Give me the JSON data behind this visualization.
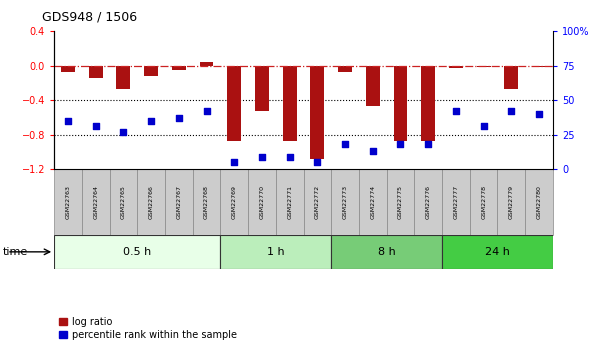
{
  "title": "GDS948 / 1506",
  "samples": [
    "GSM22763",
    "GSM22764",
    "GSM22765",
    "GSM22766",
    "GSM22767",
    "GSM22768",
    "GSM22769",
    "GSM22770",
    "GSM22771",
    "GSM22772",
    "GSM22773",
    "GSM22774",
    "GSM22775",
    "GSM22776",
    "GSM22777",
    "GSM22778",
    "GSM22779",
    "GSM22780"
  ],
  "log_ratio": [
    -0.08,
    -0.15,
    -0.27,
    -0.12,
    -0.05,
    0.04,
    -0.88,
    -0.53,
    -0.87,
    -1.08,
    -0.07,
    -0.47,
    -0.87,
    -0.87,
    -0.03,
    -0.02,
    -0.27,
    -0.02
  ],
  "percentile_rank": [
    35,
    31,
    27,
    35,
    37,
    42,
    5,
    9,
    9,
    5,
    18,
    13,
    18,
    18,
    42,
    31,
    42,
    40
  ],
  "groups": [
    {
      "label": "0.5 h",
      "start": 0,
      "end": 6,
      "color": "#e8ffe8"
    },
    {
      "label": "1 h",
      "start": 6,
      "end": 10,
      "color": "#bbeebb"
    },
    {
      "label": "8 h",
      "start": 10,
      "end": 14,
      "color": "#77cc77"
    },
    {
      "label": "24 h",
      "start": 14,
      "end": 18,
      "color": "#44cc44"
    }
  ],
  "ylim_left": [
    -1.2,
    0.4
  ],
  "ylim_right": [
    0,
    100
  ],
  "bar_color": "#aa1111",
  "scatter_color": "#0000cc",
  "hline_color": "#cc2222",
  "dot_gridline_color": "#000000",
  "label_box_color": "#cccccc",
  "label_box_edge": "#888888"
}
